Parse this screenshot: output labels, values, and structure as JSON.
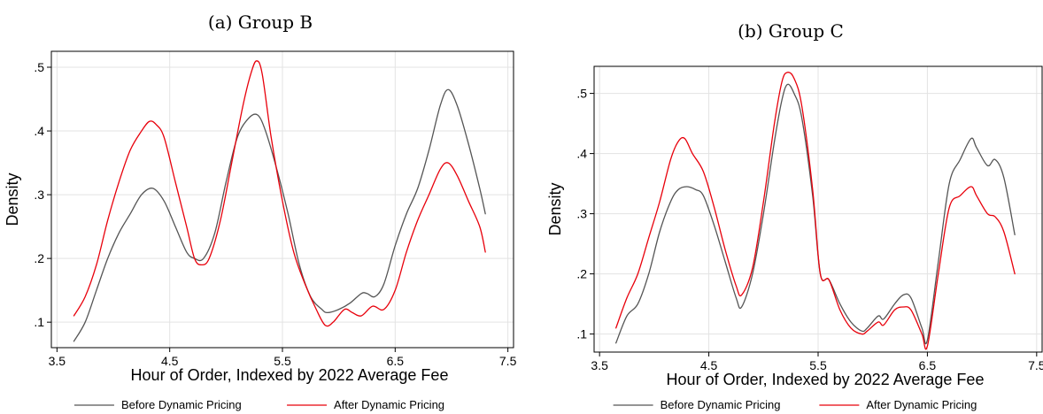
{
  "chart_data": [
    {
      "type": "line",
      "title": "(a) Group B",
      "xlabel": "Hour of Order, Indexed by 2022 Average Fee",
      "ylabel": "Density",
      "xlim": [
        3.45,
        7.55
      ],
      "ylim": [
        0.06,
        0.525
      ],
      "xticks": [
        3.5,
        4.5,
        5.5,
        6.5,
        7.5
      ],
      "xtick_labels": [
        "3.5",
        "4.5",
        "5.5",
        "6.5",
        "7.5"
      ],
      "yticks": [
        0.1,
        0.2,
        0.3,
        0.4,
        0.5
      ],
      "ytick_labels": [
        ".1",
        ".2",
        ".3",
        ".4",
        ".5"
      ],
      "grid": true,
      "legend_position": "bottom",
      "series": [
        {
          "name": "Before Dynamic Pricing",
          "color": "#555555",
          "x": [
            3.65,
            3.75,
            3.85,
            3.95,
            4.05,
            4.15,
            4.25,
            4.35,
            4.45,
            4.55,
            4.65,
            4.72,
            4.8,
            4.9,
            5.0,
            5.1,
            5.2,
            5.28,
            5.35,
            5.45,
            5.55,
            5.65,
            5.75,
            5.85,
            5.9,
            6.0,
            6.1,
            6.2,
            6.25,
            6.32,
            6.4,
            6.5,
            6.6,
            6.7,
            6.8,
            6.9,
            6.97,
            7.05,
            7.15,
            7.25,
            7.3
          ],
          "y": [
            0.07,
            0.1,
            0.15,
            0.2,
            0.24,
            0.27,
            0.3,
            0.31,
            0.29,
            0.25,
            0.21,
            0.2,
            0.2,
            0.24,
            0.32,
            0.39,
            0.42,
            0.425,
            0.4,
            0.34,
            0.27,
            0.19,
            0.14,
            0.12,
            0.115,
            0.12,
            0.13,
            0.145,
            0.145,
            0.14,
            0.16,
            0.22,
            0.27,
            0.31,
            0.37,
            0.44,
            0.465,
            0.44,
            0.38,
            0.31,
            0.27
          ]
        },
        {
          "name": "After Dynamic Pricing",
          "color": "#e8000b",
          "x": [
            3.65,
            3.75,
            3.85,
            3.95,
            4.05,
            4.15,
            4.25,
            4.32,
            4.38,
            4.45,
            4.55,
            4.65,
            4.72,
            4.78,
            4.85,
            4.95,
            5.05,
            5.15,
            5.22,
            5.27,
            5.32,
            5.4,
            5.5,
            5.6,
            5.7,
            5.8,
            5.88,
            5.95,
            6.05,
            6.12,
            6.2,
            6.3,
            6.4,
            6.5,
            6.6,
            6.7,
            6.8,
            6.9,
            6.97,
            7.05,
            7.15,
            7.25,
            7.3
          ],
          "y": [
            0.11,
            0.14,
            0.19,
            0.26,
            0.32,
            0.37,
            0.4,
            0.415,
            0.41,
            0.39,
            0.32,
            0.25,
            0.2,
            0.19,
            0.2,
            0.26,
            0.35,
            0.44,
            0.49,
            0.51,
            0.49,
            0.39,
            0.29,
            0.21,
            0.16,
            0.12,
            0.095,
            0.1,
            0.12,
            0.115,
            0.11,
            0.125,
            0.12,
            0.15,
            0.21,
            0.26,
            0.3,
            0.34,
            0.35,
            0.33,
            0.29,
            0.25,
            0.21
          ]
        }
      ]
    },
    {
      "type": "line",
      "title": "(b) Group C",
      "xlabel": "Hour of Order, Indexed by 2022 Average Fee",
      "ylabel": "Density",
      "xlim": [
        3.45,
        7.55
      ],
      "ylim": [
        0.07,
        0.545
      ],
      "xticks": [
        3.5,
        4.5,
        5.5,
        6.5,
        7.5
      ],
      "xtick_labels": [
        "3.5",
        "4.5",
        "5.5",
        "6.5",
        "7.5"
      ],
      "yticks": [
        0.1,
        0.2,
        0.3,
        0.4,
        0.5
      ],
      "ytick_labels": [
        ".1",
        ".2",
        ".3",
        ".4",
        ".5"
      ],
      "grid": true,
      "legend_position": "bottom",
      "series": [
        {
          "name": "Before Dynamic Pricing",
          "color": "#555555",
          "x": [
            3.65,
            3.75,
            3.85,
            3.95,
            4.05,
            4.15,
            4.22,
            4.3,
            4.38,
            4.45,
            4.55,
            4.65,
            4.75,
            4.8,
            4.9,
            5.0,
            5.1,
            5.17,
            5.22,
            5.28,
            5.35,
            5.45,
            5.52,
            5.6,
            5.7,
            5.8,
            5.9,
            5.95,
            6.05,
            6.1,
            6.2,
            6.28,
            6.35,
            6.45,
            6.5,
            6.6,
            6.7,
            6.8,
            6.9,
            6.95,
            7.05,
            7.12,
            7.2,
            7.3
          ],
          "y": [
            0.085,
            0.13,
            0.15,
            0.2,
            0.27,
            0.32,
            0.34,
            0.345,
            0.34,
            0.33,
            0.28,
            0.22,
            0.16,
            0.145,
            0.2,
            0.3,
            0.42,
            0.49,
            0.515,
            0.5,
            0.46,
            0.33,
            0.2,
            0.19,
            0.15,
            0.12,
            0.105,
            0.11,
            0.13,
            0.125,
            0.15,
            0.165,
            0.16,
            0.11,
            0.09,
            0.22,
            0.35,
            0.39,
            0.425,
            0.41,
            0.38,
            0.39,
            0.36,
            0.265
          ]
        },
        {
          "name": "After Dynamic Pricing",
          "color": "#e8000b",
          "x": [
            3.65,
            3.75,
            3.85,
            3.95,
            4.05,
            4.15,
            4.22,
            4.28,
            4.35,
            4.45,
            4.55,
            4.65,
            4.75,
            4.8,
            4.9,
            5.0,
            5.1,
            5.17,
            5.22,
            5.28,
            5.35,
            5.45,
            5.52,
            5.6,
            5.7,
            5.8,
            5.9,
            5.95,
            6.05,
            6.1,
            6.2,
            6.28,
            6.35,
            6.45,
            6.5,
            6.6,
            6.7,
            6.8,
            6.9,
            6.95,
            7.05,
            7.12,
            7.2,
            7.3
          ],
          "y": [
            0.11,
            0.16,
            0.2,
            0.26,
            0.32,
            0.39,
            0.42,
            0.425,
            0.4,
            0.37,
            0.31,
            0.24,
            0.18,
            0.165,
            0.21,
            0.32,
            0.45,
            0.52,
            0.535,
            0.525,
            0.48,
            0.34,
            0.2,
            0.19,
            0.14,
            0.11,
            0.1,
            0.105,
            0.12,
            0.115,
            0.14,
            0.145,
            0.14,
            0.1,
            0.08,
            0.2,
            0.31,
            0.33,
            0.345,
            0.33,
            0.3,
            0.295,
            0.27,
            0.2
          ]
        }
      ]
    }
  ]
}
